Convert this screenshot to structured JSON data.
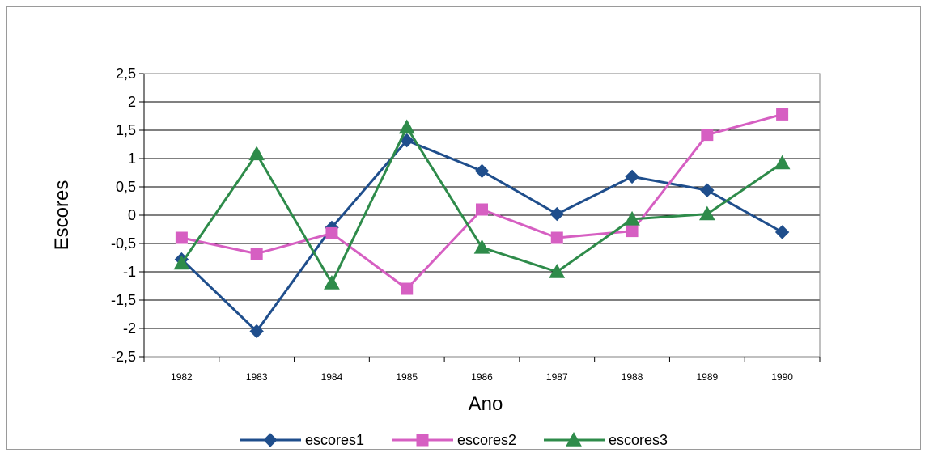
{
  "chart_data": {
    "type": "line",
    "title": "",
    "xlabel": "Ano",
    "ylabel": "Escores",
    "categories": [
      "1982",
      "1983",
      "1984",
      "1985",
      "1986",
      "1987",
      "1988",
      "1989",
      "1990"
    ],
    "ylim": [
      -2.5,
      2.5
    ],
    "yticks": [
      "2,5",
      "2",
      "1,5",
      "1",
      "0,5",
      "0",
      "-0,5",
      "-1",
      "-1,5",
      "-2",
      "-2,5"
    ],
    "ytick_values": [
      2.5,
      2,
      1.5,
      1,
      0.5,
      0,
      -0.5,
      -1,
      -1.5,
      -2,
      -2.5
    ],
    "grid": true,
    "legend_position": "bottom",
    "series": [
      {
        "name": "escores1",
        "marker": "diamond",
        "color": "#1f4e8c",
        "values": [
          -0.78,
          -2.05,
          -0.22,
          1.32,
          0.78,
          0.02,
          0.68,
          0.44,
          -0.3
        ]
      },
      {
        "name": "escores2",
        "marker": "square",
        "color": "#d65fc2",
        "values": [
          -0.4,
          -0.68,
          -0.32,
          -1.3,
          0.1,
          -0.4,
          -0.28,
          1.42,
          1.78
        ]
      },
      {
        "name": "escores3",
        "marker": "triangle",
        "color": "#2e8b4a",
        "values": [
          -0.85,
          1.08,
          -1.2,
          1.55,
          -0.57,
          -1.0,
          -0.07,
          0.02,
          0.92
        ]
      }
    ]
  }
}
